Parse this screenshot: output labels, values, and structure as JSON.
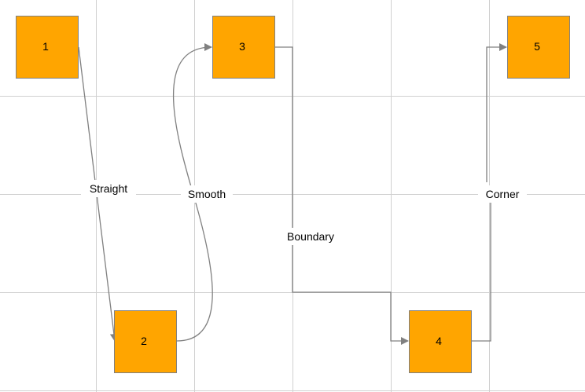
{
  "nodes": [
    {
      "id": "1",
      "label": "1"
    },
    {
      "id": "2",
      "label": "2"
    },
    {
      "id": "3",
      "label": "3"
    },
    {
      "id": "4",
      "label": "4"
    },
    {
      "id": "5",
      "label": "5"
    }
  ],
  "links": [
    {
      "from": "1",
      "to": "2",
      "label": "Straight"
    },
    {
      "from": "2",
      "to": "3",
      "label": "Smooth"
    },
    {
      "from": "3",
      "to": "4",
      "label": "Boundary"
    },
    {
      "from": "4",
      "to": "5",
      "label": "Corner"
    }
  ],
  "colors": {
    "node_fill": "#ffa500",
    "node_stroke": "#808080",
    "link": "#808080",
    "grid": "#d0d0d0"
  }
}
